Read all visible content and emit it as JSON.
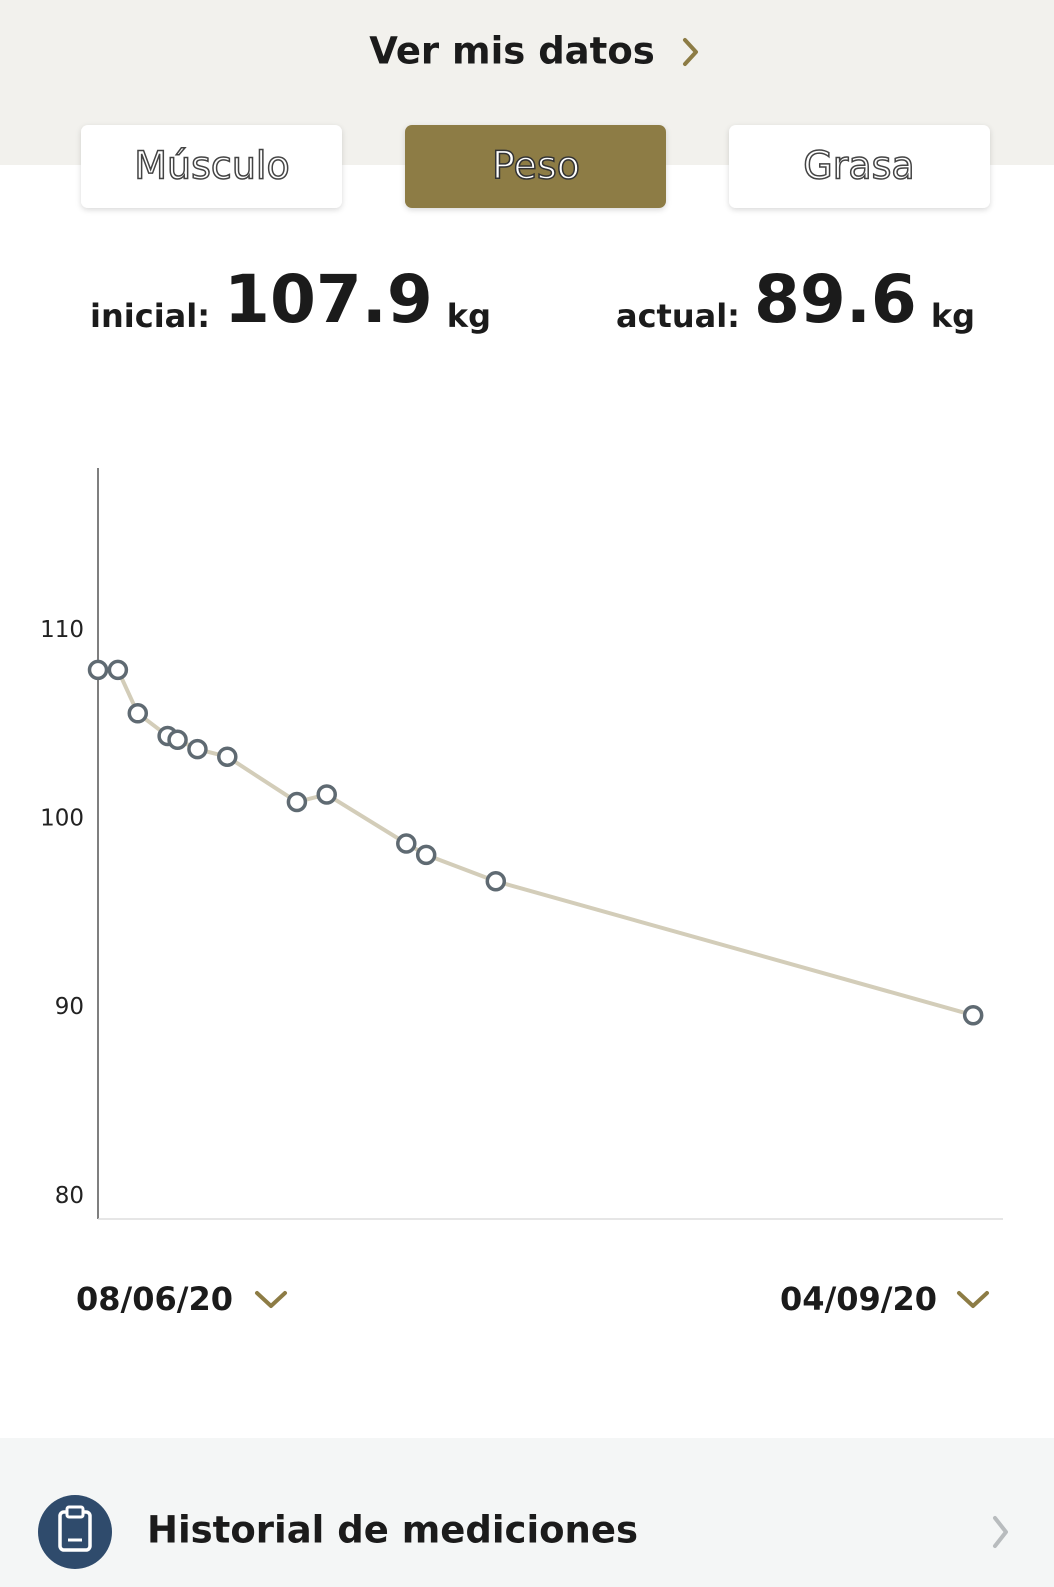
{
  "header": {
    "title": "Ver mis datos"
  },
  "tabs": [
    "Músculo",
    "Peso",
    "Grasa"
  ],
  "stats": {
    "initial": {
      "label": "inicial:",
      "value": "107.9",
      "unit": "kg"
    },
    "current": {
      "label": "actual:",
      "value": "89.6",
      "unit": "kg"
    }
  },
  "chart_data": {
    "type": "line",
    "x": [
      0,
      2,
      4,
      7,
      8,
      10,
      13,
      20,
      23,
      31,
      33,
      40,
      88
    ],
    "series": [
      {
        "color": "#d3cdb9",
        "values": [
          107.9,
          107.9,
          105.6,
          104.4,
          104.2,
          103.7,
          103.3,
          100.9,
          101.3,
          98.7,
          98.1,
          96.7,
          89.6
        ]
      }
    ],
    "xlim": [
      0,
      91
    ],
    "ylim": [
      78.8,
      118.6
    ],
    "yticks": [
      80,
      90,
      100,
      110
    ],
    "grid": false
  },
  "date_range": {
    "start": "08/06/20",
    "end": "04/09/20"
  },
  "footer": {
    "title": "Historial de mediciones"
  }
}
